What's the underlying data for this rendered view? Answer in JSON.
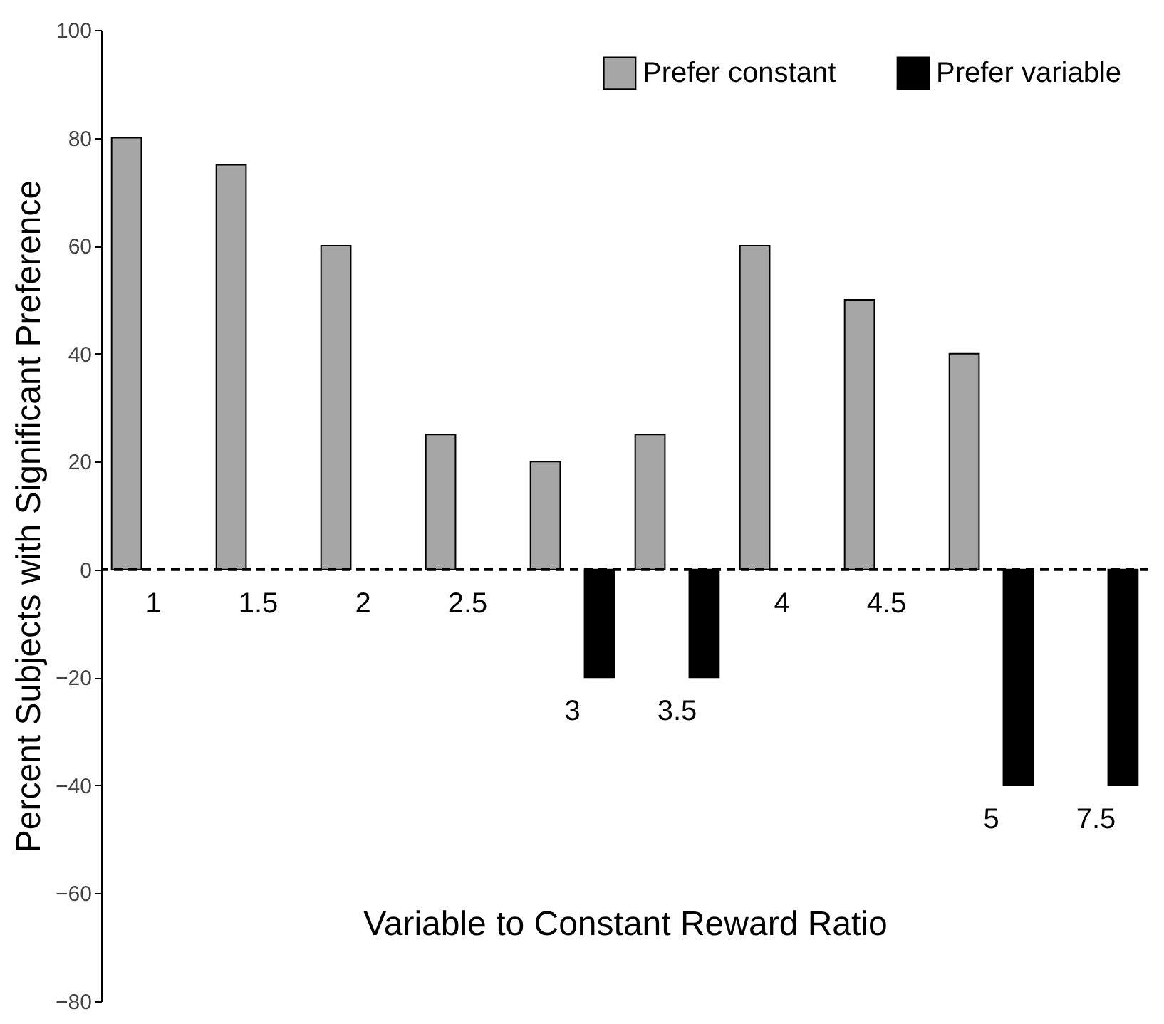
{
  "chart_data": {
    "type": "bar",
    "xlabel": "Variable to Constant Reward Ratio",
    "ylabel": "Percent Subjects with Significant Preference",
    "categories": [
      "1",
      "1.5",
      "2",
      "2.5",
      "3",
      "3.5",
      "4",
      "4.5",
      "5",
      "7.5"
    ],
    "series": [
      {
        "name": "Prefer constant",
        "color": "#a6a6a6",
        "values": [
          80,
          75,
          60,
          25,
          20,
          25,
          60,
          50,
          40,
          null
        ]
      },
      {
        "name": "Prefer variable",
        "color": "#000000",
        "values": [
          null,
          null,
          null,
          null,
          -20,
          -20,
          null,
          null,
          -40,
          -40
        ]
      }
    ],
    "ylim": [
      -80,
      100
    ],
    "yticks": [
      -80,
      -60,
      -40,
      -20,
      0,
      20,
      40,
      60,
      80,
      100
    ],
    "grid": false,
    "legend": "top right",
    "ref_lines": [
      {
        "axis": "y",
        "value": 0,
        "line_style": "dashed",
        "color": "#000000"
      }
    ]
  }
}
